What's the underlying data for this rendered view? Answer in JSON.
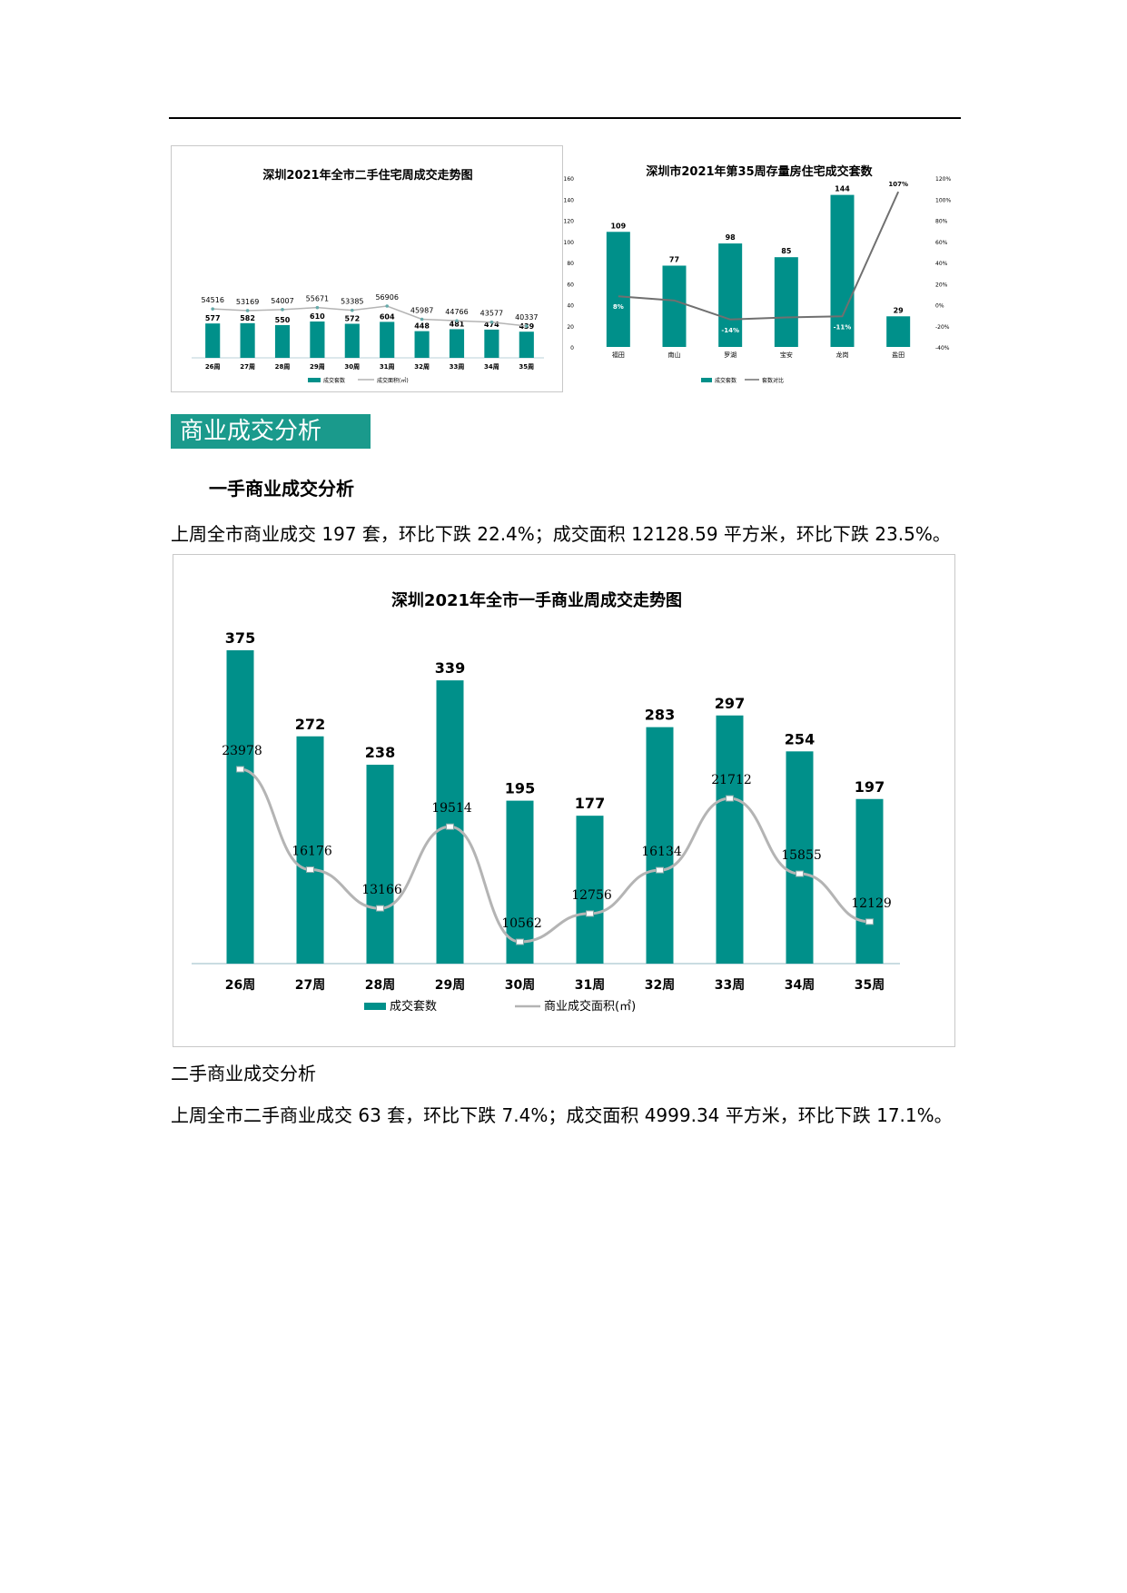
{
  "sections": {
    "commercial_title": "商业成交分析",
    "first_hand_title": "一手商业成交分析",
    "first_hand_text": "上周全市商业成交 197 套，环比下跌 22.4%；成交面积 12128.59 平方米，环比下跌 23.5%。",
    "second_hand_title": "二手商业成交分析",
    "second_hand_text": "上周全市二手商业成交 63 套，环比下跌 7.4%；成交面积 4999.34 平方米，环比下跌 17.1%。"
  },
  "colors": {
    "bar": "#00908a",
    "line": "#b4b4b4",
    "line_dark": "#707070",
    "title_bg": "#1a9a8c"
  },
  "chart_data": [
    {
      "type": "bar",
      "title": "深圳2021年全市二手住宅周成交走势图",
      "categories": [
        "26周",
        "27周",
        "28周",
        "29周",
        "30周",
        "31周",
        "32周",
        "33周",
        "34周",
        "35周"
      ],
      "series": [
        {
          "name": "成交套数",
          "type": "bar",
          "values": [
            577,
            582,
            550,
            610,
            572,
            604,
            448,
            481,
            474,
            439
          ]
        },
        {
          "name": "成交面积(㎡)",
          "type": "line",
          "values": [
            54516,
            53169,
            54007,
            55671,
            53385,
            56906,
            45987,
            44766,
            43577,
            40337
          ]
        }
      ],
      "grid": false,
      "legend": "bottom"
    },
    {
      "type": "bar",
      "title": "深圳市2021年第35周存量房住宅成交套数",
      "categories": [
        "福田",
        "南山",
        "罗湖",
        "宝安",
        "龙岗",
        "盐田"
      ],
      "series": [
        {
          "name": "成交套数",
          "type": "bar",
          "values": [
            109,
            77,
            98,
            85,
            144,
            29
          ]
        },
        {
          "name": "套数对比",
          "type": "line",
          "axis": "right",
          "values": [
            8,
            4,
            -14,
            -12,
            -11,
            107
          ],
          "labels": [
            "8%",
            "",
            "-14%",
            "",
            "-11%",
            "107%"
          ]
        }
      ],
      "y_left": {
        "min": 0,
        "max": 160,
        "ticks": [
          "0",
          "20",
          "40",
          "60",
          "80",
          "100",
          "120",
          "140",
          "160"
        ]
      },
      "y_right": {
        "min": -40,
        "max": 120,
        "ticks": [
          "-40%",
          "-20%",
          "0%",
          "20%",
          "40%",
          "60%",
          "80%",
          "100%",
          "120%"
        ]
      },
      "grid": false,
      "legend": "bottom"
    },
    {
      "type": "bar",
      "title": "深圳2021年全市一手商业周成交走势图",
      "categories": [
        "26周",
        "27周",
        "28周",
        "29周",
        "30周",
        "31周",
        "32周",
        "33周",
        "34周",
        "35周"
      ],
      "series": [
        {
          "name": "成交套数",
          "type": "bar",
          "values": [
            375,
            272,
            238,
            339,
            195,
            177,
            283,
            297,
            254,
            197
          ]
        },
        {
          "name": "商业成交面积(㎡)",
          "type": "line",
          "values": [
            23978,
            16176,
            13166,
            19514,
            10562,
            12756,
            16134,
            21712,
            15855,
            12129
          ]
        }
      ],
      "grid": false,
      "legend": "bottom"
    }
  ]
}
